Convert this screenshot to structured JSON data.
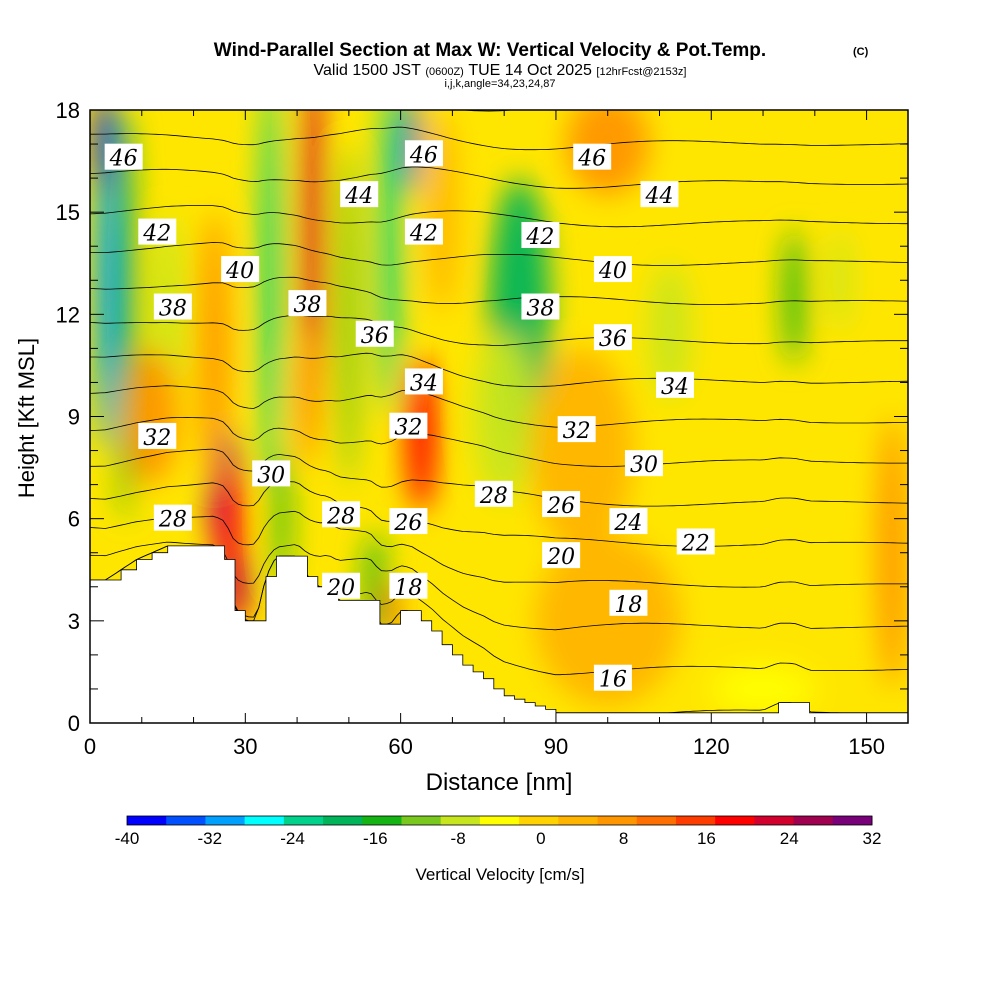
{
  "chart_data": {
    "type": "heatmap",
    "title": "Wind-Parallel Section at Max W: Vertical Velocity & Pot.Temp.",
    "copyright": "(C)",
    "subtitle": {
      "valid": "Valid 1500 JST",
      "utc": "(0600Z)",
      "date": "TUE 14 Oct 2025",
      "fcst": "[12hrFcst@2153z]"
    },
    "indices": "i,j,k,angle=34,23,24,87",
    "xlabel": "Distance [nm]",
    "ylabel": "Height [Kft MSL]",
    "xlim": [
      0,
      158
    ],
    "ylim": [
      0,
      18
    ],
    "x_ticks": [
      "0",
      "30",
      "60",
      "90",
      "120",
      "150"
    ],
    "x_tick_values": [
      0,
      30,
      60,
      90,
      120,
      150
    ],
    "y_ticks": [
      "0",
      "3",
      "6",
      "9",
      "12",
      "15",
      "18"
    ],
    "y_tick_values": [
      0,
      3,
      6,
      9,
      12,
      15,
      18
    ],
    "colorbar": {
      "label": "Vertical Velocity [cm/s]",
      "min": -40,
      "max": 32,
      "step": 4,
      "tick_labels": [
        "-40",
        "-32",
        "-24",
        "-16",
        "-8",
        "0",
        "8",
        "16",
        "24",
        "32"
      ],
      "tick_values": [
        -40,
        -32,
        -24,
        -16,
        -8,
        0,
        8,
        16,
        24,
        32
      ],
      "colors": [
        "#0000ff",
        "#0050ff",
        "#00a0ff",
        "#00ffff",
        "#00d28c",
        "#00b45a",
        "#14b414",
        "#78c81e",
        "#c8e61e",
        "#ffff00",
        "#ffd200",
        "#ffb400",
        "#ff9600",
        "#ff6e00",
        "#ff3c00",
        "#ff0000",
        "#d2002d",
        "#a00050",
        "#780078"
      ]
    },
    "series": [
      {
        "name": "vertical_velocity_cells",
        "units": "cm/s",
        "cells": [
          {
            "x": 3,
            "y": 13,
            "sx": 2,
            "sy": 5,
            "v": -30
          },
          {
            "x": 3,
            "y": 17,
            "sx": 2,
            "sy": 1.5,
            "v": -38
          },
          {
            "x": 7,
            "y": 12,
            "sx": 2,
            "sy": 6,
            "v": -16
          },
          {
            "x": 15,
            "y": 12,
            "sx": 3,
            "sy": 3,
            "v": -8
          },
          {
            "x": 26,
            "y": 6.7,
            "sx": 3,
            "sy": 2,
            "v": 32
          },
          {
            "x": 27,
            "y": 5.2,
            "sx": 2.5,
            "sy": 2.5,
            "v": 22
          },
          {
            "x": 29,
            "y": 4,
            "sx": 1.6,
            "sy": 1,
            "v": 30
          },
          {
            "x": 24,
            "y": 11,
            "sx": 3,
            "sy": 4,
            "v": 10
          },
          {
            "x": 35,
            "y": 13,
            "sx": 2,
            "sy": 6,
            "v": -24
          },
          {
            "x": 37,
            "y": 6,
            "sx": 1.5,
            "sy": 2,
            "v": -14
          },
          {
            "x": 43,
            "y": 14,
            "sx": 2,
            "sy": 6,
            "v": 26
          },
          {
            "x": 42,
            "y": 9.5,
            "sx": 2,
            "sy": 2,
            "v": 8
          },
          {
            "x": 50,
            "y": 12,
            "sx": 2,
            "sy": 5,
            "v": -12
          },
          {
            "x": 58,
            "y": 14,
            "sx": 2,
            "sy": 5,
            "v": -24
          },
          {
            "x": 62,
            "y": 17,
            "sx": 1.5,
            "sy": 1.5,
            "v": -36
          },
          {
            "x": 64,
            "y": 8.5,
            "sx": 3,
            "sy": 2.3,
            "v": 20
          },
          {
            "x": 55,
            "y": 4,
            "sx": 2,
            "sy": 1.6,
            "v": -16
          },
          {
            "x": 58,
            "y": 3.3,
            "sx": 1.2,
            "sy": 0.8,
            "v": 20
          },
          {
            "x": 68,
            "y": 15,
            "sx": 3,
            "sy": 3,
            "v": 6
          },
          {
            "x": 83,
            "y": 12,
            "sx": 6,
            "sy": 4,
            "v": -20
          },
          {
            "x": 80,
            "y": 9,
            "sx": 6,
            "sy": 2.5,
            "v": -8
          },
          {
            "x": 100,
            "y": 17,
            "sx": 8,
            "sy": 1.5,
            "v": 8
          },
          {
            "x": 112,
            "y": 11.5,
            "sx": 4,
            "sy": 2,
            "v": -6
          },
          {
            "x": 136,
            "y": 12.5,
            "sx": 2,
            "sy": 2,
            "v": -14
          },
          {
            "x": 145,
            "y": 13,
            "sx": 2,
            "sy": 1.5,
            "v": -6
          },
          {
            "x": 100,
            "y": 3,
            "sx": 14,
            "sy": 2.5,
            "v": 4
          },
          {
            "x": 130,
            "y": 1,
            "sx": 10,
            "sy": 0.7,
            "v": -2
          },
          {
            "x": 155,
            "y": 5,
            "sx": 3,
            "sy": 4,
            "v": 8
          },
          {
            "x": 12,
            "y": 9,
            "sx": 5,
            "sy": 2,
            "v": 10
          },
          {
            "x": 95,
            "y": 8,
            "sx": 10,
            "sy": 3,
            "v": 4
          }
        ]
      },
      {
        "name": "potential_temperature_contours",
        "units": "deg",
        "levels": [
          16,
          18,
          20,
          22,
          24,
          26,
          28,
          30,
          32,
          34,
          36,
          38,
          40,
          42,
          44,
          46
        ],
        "label_points": [
          {
            "text": "46",
            "x": 6.5,
            "y": 16.6
          },
          {
            "text": "42",
            "x": 13,
            "y": 14.4
          },
          {
            "text": "40",
            "x": 29,
            "y": 13.3
          },
          {
            "text": "38",
            "x": 16,
            "y": 12.2
          },
          {
            "text": "32",
            "x": 13,
            "y": 8.4
          },
          {
            "text": "28",
            "x": 16,
            "y": 6.0
          },
          {
            "text": "30",
            "x": 35,
            "y": 7.3
          },
          {
            "text": "38",
            "x": 42,
            "y": 12.3
          },
          {
            "text": "44",
            "x": 52,
            "y": 15.5
          },
          {
            "text": "36",
            "x": 55,
            "y": 11.4
          },
          {
            "text": "46",
            "x": 64.5,
            "y": 16.7
          },
          {
            "text": "42",
            "x": 64.5,
            "y": 14.4
          },
          {
            "text": "34",
            "x": 64.5,
            "y": 10.0
          },
          {
            "text": "32",
            "x": 61.5,
            "y": 8.7
          },
          {
            "text": "28",
            "x": 48.5,
            "y": 6.1
          },
          {
            "text": "26",
            "x": 61.5,
            "y": 5.9
          },
          {
            "text": "20",
            "x": 48.5,
            "y": 4.0
          },
          {
            "text": "18",
            "x": 61.5,
            "y": 4.0
          },
          {
            "text": "42",
            "x": 87,
            "y": 14.3
          },
          {
            "text": "38",
            "x": 87,
            "y": 12.2
          },
          {
            "text": "46",
            "x": 97,
            "y": 16.6
          },
          {
            "text": "44",
            "x": 110,
            "y": 15.5
          },
          {
            "text": "40",
            "x": 101,
            "y": 13.3
          },
          {
            "text": "36",
            "x": 101,
            "y": 11.3
          },
          {
            "text": "34",
            "x": 113,
            "y": 9.9
          },
          {
            "text": "32",
            "x": 94,
            "y": 8.6
          },
          {
            "text": "30",
            "x": 107,
            "y": 7.6
          },
          {
            "text": "28",
            "x": 78,
            "y": 6.7
          },
          {
            "text": "26",
            "x": 91,
            "y": 6.4
          },
          {
            "text": "24",
            "x": 104,
            "y": 5.9
          },
          {
            "text": "22",
            "x": 117,
            "y": 5.3
          },
          {
            "text": "20",
            "x": 91,
            "y": 4.9
          },
          {
            "text": "18",
            "x": 104,
            "y": 3.5
          },
          {
            "text": "16",
            "x": 101,
            "y": 1.3
          }
        ]
      }
    ],
    "terrain_profile": {
      "x": [
        0,
        3,
        6,
        9,
        12,
        15,
        18,
        21,
        24,
        26,
        28,
        30,
        32,
        34,
        36,
        38,
        40,
        42,
        44,
        46,
        48,
        50,
        52,
        54,
        56,
        58,
        60,
        62,
        64,
        66,
        68,
        70,
        72,
        74,
        76,
        78,
        80,
        82,
        84,
        86,
        88,
        90,
        92,
        95,
        100,
        110,
        120,
        130,
        133,
        136,
        139,
        142,
        150,
        158
      ],
      "height": [
        4.2,
        4.2,
        4.5,
        4.8,
        5.0,
        5.2,
        5.2,
        5.2,
        5.2,
        4.8,
        3.3,
        3.0,
        3.0,
        4.3,
        4.9,
        4.9,
        4.9,
        4.3,
        4.0,
        4.0,
        3.6,
        3.6,
        3.6,
        3.6,
        2.9,
        2.9,
        3.3,
        3.3,
        3.0,
        2.7,
        2.3,
        2.0,
        1.7,
        1.5,
        1.3,
        1.0,
        0.8,
        0.7,
        0.6,
        0.5,
        0.4,
        0.3,
        0.3,
        0.3,
        0.3,
        0.3,
        0.3,
        0.3,
        0.6,
        0.6,
        0.3,
        0.3,
        0.3,
        0.3
      ]
    }
  }
}
